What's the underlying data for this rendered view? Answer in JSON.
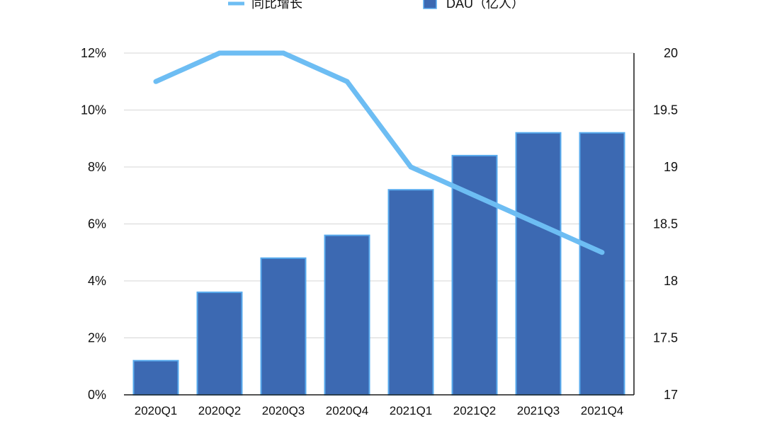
{
  "chart_data": {
    "type": "bar",
    "categories": [
      "2020Q1",
      "2020Q2",
      "2020Q3",
      "2020Q4",
      "2021Q1",
      "2021Q2",
      "2021Q3",
      "2021Q4"
    ],
    "series": [
      {
        "name": "DAU（亿人）",
        "type": "bar",
        "axis": "right",
        "values": [
          17.3,
          17.9,
          18.2,
          18.4,
          18.8,
          19.1,
          19.3,
          19.3
        ]
      },
      {
        "name": "同比增长",
        "type": "line",
        "axis": "left",
        "unit": "%",
        "values": [
          11,
          12,
          12,
          11,
          8,
          7,
          6,
          5
        ]
      }
    ],
    "y_left": {
      "ylim": [
        0,
        12
      ],
      "tick_values": [
        0,
        2,
        4,
        6,
        8,
        10,
        12
      ],
      "tick_labels": [
        "0%",
        "2%",
        "4%",
        "6%",
        "8%",
        "10%",
        "12%"
      ]
    },
    "y_right": {
      "ylim": [
        17,
        20
      ],
      "tick_values": [
        17,
        17.5,
        18,
        18.5,
        19,
        19.5,
        20
      ],
      "tick_labels": [
        "17",
        "17.5",
        "18",
        "18.5",
        "19",
        "19.5",
        "20"
      ]
    },
    "grid": true,
    "legend_position": "top",
    "colors": {
      "bar_fill": "#3c69b2",
      "bar_stroke": "#58abee",
      "line": "#6dbdf3",
      "grid": "#d6d6d6",
      "axis": "#1a1a1a"
    }
  }
}
